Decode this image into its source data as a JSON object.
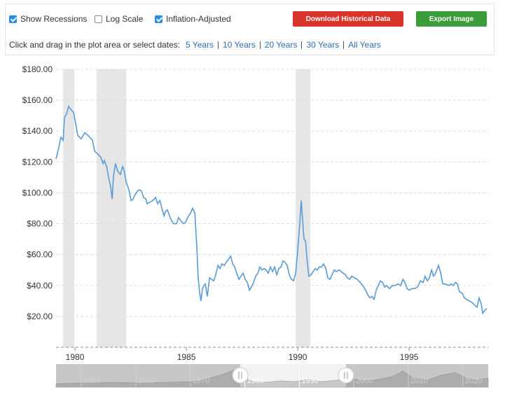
{
  "controls": {
    "checkboxes": [
      {
        "label": "Show Recessions",
        "checked": true
      },
      {
        "label": "Log Scale",
        "checked": false
      },
      {
        "label": "Inflation-Adjusted",
        "checked": true
      }
    ],
    "buttons": [
      {
        "label": "Download Historical Data",
        "color": "#d9342b"
      },
      {
        "label": "Export Image",
        "color": "#3a9d3a"
      }
    ],
    "hint": "Click and drag in the plot area or select dates:",
    "ranges": [
      "5 Years",
      "10 Years",
      "20 Years",
      "30 Years",
      "All Years"
    ]
  },
  "chart_data": {
    "type": "line",
    "color": "#5b9bd5",
    "recession_color": "#e6e6e6",
    "log_scale": false,
    "grid": true,
    "xlim": [
      1979.15,
      1998.55
    ],
    "xticks": [
      1980,
      1985,
      1990,
      1995
    ],
    "ylim": [
      0,
      180
    ],
    "yticks": [
      {
        "value": 20,
        "label": "$20.00"
      },
      {
        "value": 40,
        "label": "$40.00"
      },
      {
        "value": 60,
        "label": "$60.00"
      },
      {
        "value": 80,
        "label": "$80.00"
      },
      {
        "value": 100,
        "label": "$100.00"
      },
      {
        "value": 120,
        "label": "$120.00"
      },
      {
        "value": 140,
        "label": "$140.00"
      },
      {
        "value": 160,
        "label": "$160.00"
      },
      {
        "value": 180,
        "label": "$180.00"
      }
    ],
    "recessions": [
      [
        1979.47,
        1979.97
      ],
      [
        1980.97,
        1982.3
      ],
      [
        1989.91,
        1990.57
      ]
    ],
    "x": [
      1979.15,
      1979.25,
      1979.37,
      1979.47,
      1979.53,
      1979.62,
      1979.72,
      1979.81,
      1979.94,
      1980.03,
      1980.13,
      1980.28,
      1980.44,
      1980.6,
      1980.79,
      1980.88,
      1981.04,
      1981.16,
      1981.26,
      1981.32,
      1981.42,
      1981.51,
      1981.6,
      1981.67,
      1981.73,
      1981.82,
      1981.92,
      1982.04,
      1982.14,
      1982.2,
      1982.3,
      1982.42,
      1982.52,
      1982.61,
      1982.7,
      1982.8,
      1982.89,
      1982.99,
      1983.08,
      1983.18,
      1983.24,
      1983.36,
      1983.49,
      1983.62,
      1983.71,
      1983.81,
      1983.9,
      1984.0,
      1984.06,
      1984.15,
      1984.25,
      1984.34,
      1984.43,
      1984.56,
      1984.65,
      1984.75,
      1984.87,
      1984.97,
      1985.06,
      1985.19,
      1985.28,
      1985.38,
      1985.47,
      1985.53,
      1985.6,
      1985.66,
      1985.72,
      1985.79,
      1985.85,
      1985.94,
      1986.04,
      1986.13,
      1986.23,
      1986.32,
      1986.42,
      1986.51,
      1986.6,
      1986.7,
      1986.79,
      1986.89,
      1986.99,
      1987.08,
      1987.17,
      1987.26,
      1987.36,
      1987.45,
      1987.55,
      1987.64,
      1987.74,
      1987.83,
      1987.92,
      1988.02,
      1988.11,
      1988.21,
      1988.3,
      1988.4,
      1988.49,
      1988.58,
      1988.68,
      1988.77,
      1988.87,
      1988.96,
      1989.06,
      1989.15,
      1989.25,
      1989.34,
      1989.43,
      1989.53,
      1989.62,
      1989.72,
      1989.81,
      1989.91,
      1990.0,
      1990.09,
      1990.16,
      1990.22,
      1990.28,
      1990.35,
      1990.41,
      1990.5,
      1990.6,
      1990.69,
      1990.79,
      1990.88,
      1990.97,
      1991.07,
      1991.16,
      1991.26,
      1991.35,
      1991.45,
      1991.54,
      1991.64,
      1991.73,
      1991.86,
      1991.95,
      1992.04,
      1992.14,
      1992.23,
      1992.33,
      1992.42,
      1992.55,
      1992.67,
      1992.8,
      1992.92,
      1993.05,
      1993.14,
      1993.24,
      1993.33,
      1993.43,
      1993.52,
      1993.62,
      1993.71,
      1993.81,
      1993.9,
      1993.99,
      1994.12,
      1994.25,
      1994.37,
      1994.5,
      1994.62,
      1994.72,
      1994.81,
      1994.91,
      1995.0,
      1995.13,
      1995.25,
      1995.38,
      1995.5,
      1995.63,
      1995.72,
      1995.82,
      1995.91,
      1996.01,
      1996.1,
      1996.19,
      1996.32,
      1996.42,
      1996.51,
      1996.64,
      1996.76,
      1996.89,
      1996.98,
      1997.08,
      1997.17,
      1997.26,
      1997.39,
      1997.48,
      1997.58,
      1997.7,
      1997.83,
      1997.96,
      1998.05,
      1998.14,
      1998.24,
      1998.3,
      1998.4,
      1998.49
    ],
    "values": [
      122,
      128,
      136,
      134,
      149,
      151,
      156,
      154,
      152,
      145,
      137,
      135,
      139,
      137,
      134,
      127,
      125,
      123,
      119,
      121,
      117,
      110,
      104,
      96,
      111,
      119,
      114,
      112,
      117,
      115,
      107,
      102,
      95,
      96,
      99,
      101,
      102,
      101,
      97,
      96,
      93,
      94,
      95,
      97,
      93,
      95,
      90,
      85,
      88,
      89,
      85,
      82,
      80,
      80,
      84,
      82,
      80,
      81,
      84,
      87,
      90,
      87,
      65,
      45,
      35,
      30,
      38,
      40,
      41,
      33,
      45,
      44,
      43,
      47,
      53,
      51,
      54,
      53,
      55,
      57,
      59,
      54,
      52,
      48,
      44,
      46,
      48,
      44,
      42,
      37,
      39,
      42,
      46,
      48,
      52,
      50,
      51,
      50,
      48,
      52,
      49,
      52,
      47,
      51,
      52,
      56,
      55,
      53,
      47,
      44,
      43,
      48,
      63,
      80,
      95,
      82,
      70,
      69,
      58,
      46,
      47,
      49,
      51,
      50,
      52,
      52,
      54,
      51,
      45,
      44,
      47,
      50,
      49,
      50,
      49,
      48,
      47,
      45,
      44,
      46,
      45,
      44,
      42,
      40,
      37,
      34,
      32,
      33,
      31,
      37,
      40,
      43,
      42,
      39,
      40,
      38,
      40,
      40,
      41,
      40,
      44,
      42,
      38,
      37,
      38,
      38,
      39,
      43,
      42,
      46,
      43,
      45,
      50,
      46,
      48,
      53,
      48,
      41,
      41,
      40,
      41,
      40,
      42,
      41,
      36,
      35,
      32,
      31,
      30,
      29,
      27,
      26,
      32,
      28,
      22,
      24,
      25
    ],
    "navigator": {
      "xlim": [
        1945.35,
        2024.65
      ],
      "xticks": [
        1950,
        1960,
        1970,
        1980,
        1990,
        2000,
        2010,
        2020
      ]
    }
  }
}
